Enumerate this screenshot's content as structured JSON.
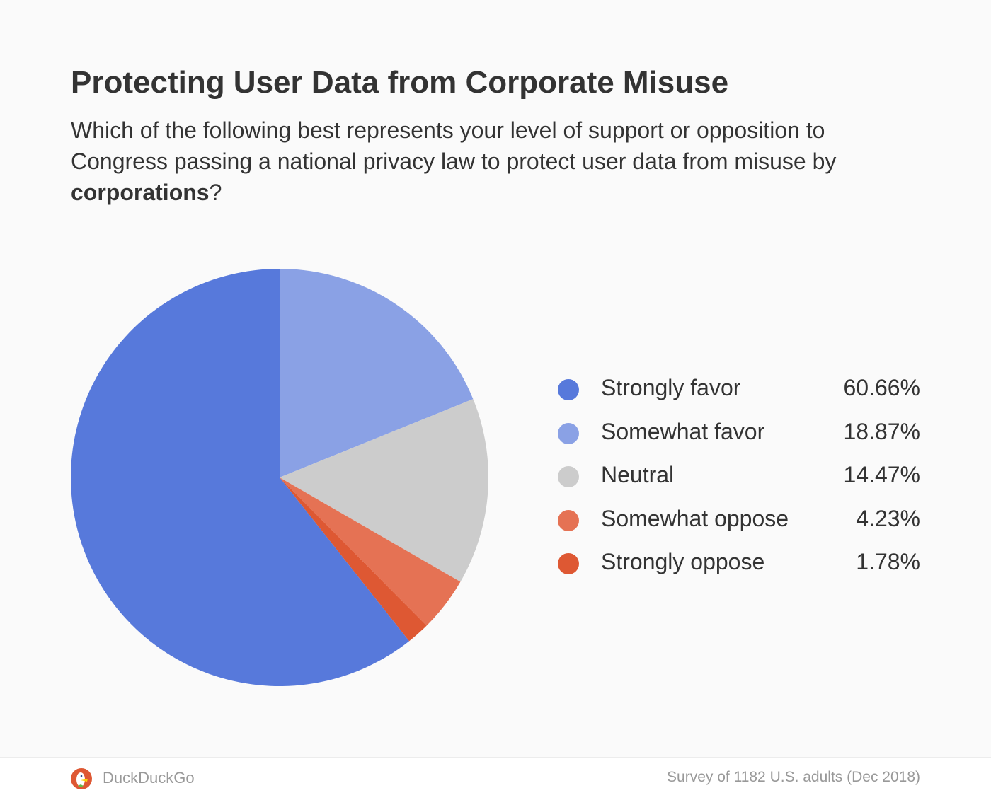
{
  "chart_data": {
    "type": "pie",
    "title": "Protecting User Data from Corporate Misuse",
    "subtitle_parts": [
      "Which of the following best represents your level of support or opposition to Congress passing a national privacy law to protect user data from misuse by ",
      "corporations",
      "?"
    ],
    "slices": [
      {
        "label": "Strongly favor",
        "value": 60.66,
        "display": "60.66%",
        "color": "#5779db"
      },
      {
        "label": "Somewhat favor",
        "value": 18.87,
        "display": "18.87%",
        "color": "#8aa1e5"
      },
      {
        "label": "Neutral",
        "value": 14.47,
        "display": "14.47%",
        "color": "#cccccc"
      },
      {
        "label": "Somewhat oppose",
        "value": 4.23,
        "display": "4.23%",
        "color": "#e57254"
      },
      {
        "label": "Strongly oppose",
        "value": 1.78,
        "display": "1.78%",
        "color": "#de5833"
      }
    ],
    "legend_position": "right"
  },
  "footer": {
    "brand": "DuckDuckGo",
    "source": "Survey of 1182 U.S. adults (Dec 2018)"
  }
}
